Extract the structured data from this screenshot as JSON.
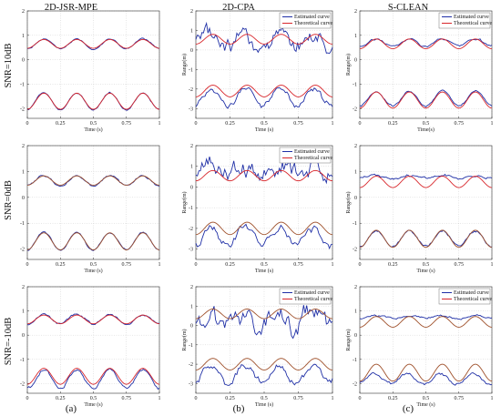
{
  "figure": {
    "column_titles": [
      "2D-JSR-MPE",
      "2D-CPA",
      "S-CLEAN"
    ],
    "row_labels": [
      "SNR=10dB",
      "SNR=0dB",
      "SNR=-10dB"
    ],
    "panel_labels": [
      "(a)",
      "(b)",
      "(c)"
    ],
    "colors": {
      "estimated": "#1f2fa6",
      "theoretical": "#d8262b",
      "theoretical_brown": "#a0522d",
      "grid": "#c0c0c0"
    }
  },
  "chart_data": [
    {
      "type": "line",
      "row": 0,
      "col": 0,
      "xlabel": "Time (s)",
      "ylabel": "",
      "xlim": [
        0,
        1
      ],
      "ylim": [
        -2.4,
        2
      ],
      "xticks": [
        "0",
        "0.25",
        "0.5",
        "0.75",
        "1"
      ],
      "yticks": [
        "-2",
        "-1",
        "0",
        "1",
        "2"
      ],
      "grid": true,
      "legend": null,
      "series": [
        {
          "name": "Estimated curve",
          "role": "est",
          "base": 0.65,
          "amp": 0.2,
          "phase": 0,
          "noise": 0.04
        },
        {
          "name": "Estimated curve",
          "role": "est",
          "base": -1.7,
          "amp": 0.35,
          "phase": 0,
          "noise": 0.04
        },
        {
          "name": "Theoretical curve",
          "role": "theo",
          "base": 0.65,
          "amp": 0.18,
          "phase": 0
        },
        {
          "name": "Theoretical curve",
          "role": "theo",
          "base": -1.7,
          "amp": 0.33,
          "phase": 0
        }
      ]
    },
    {
      "type": "line",
      "row": 0,
      "col": 1,
      "xlabel": "Time (s)",
      "ylabel": "Range(m)",
      "xlim": [
        0,
        1
      ],
      "ylim": [
        -3.5,
        2
      ],
      "xticks": [
        "0",
        "0.25",
        "0.5",
        "0.75",
        "1"
      ],
      "yticks": [
        "-3",
        "-2",
        "-1",
        "0",
        "1",
        "2"
      ],
      "grid": true,
      "legend": {
        "position": "top-right",
        "entries": [
          "Estimated curve",
          "Theoretical curve"
        ]
      },
      "series": [
        {
          "name": "Estimated curve",
          "role": "est",
          "base": 0.5,
          "amp": 0.3,
          "phase": 0.5,
          "noise": 0.55
        },
        {
          "name": "Estimated curve",
          "role": "est",
          "base": -2.4,
          "amp": 0.45,
          "phase": 0.3,
          "noise": 0.2
        },
        {
          "name": "Theoretical curve",
          "role": "theo",
          "base": 0.55,
          "amp": 0.25,
          "phase": 0
        },
        {
          "name": "Theoretical curve",
          "role": "theo",
          "base": -2.1,
          "amp": 0.3,
          "phase": 0
        }
      ]
    },
    {
      "type": "line",
      "row": 0,
      "col": 2,
      "xlabel": "Time(s)",
      "ylabel": "Range(m)",
      "xlim": [
        0,
        1
      ],
      "ylim": [
        -2.4,
        2
      ],
      "xticks": [
        "0",
        "0.25",
        "0.5",
        "0.75",
        "1"
      ],
      "yticks": [
        "-2",
        "-1",
        "0",
        "1",
        "2"
      ],
      "grid": true,
      "legend": {
        "position": "top-right",
        "entries": [
          "Estimated curve",
          "Theoretical curve"
        ]
      },
      "series": [
        {
          "name": "Estimated curve",
          "role": "est",
          "base": 0.7,
          "amp": 0.15,
          "phase": 0,
          "noise": 0.06
        },
        {
          "name": "Estimated curve",
          "role": "est",
          "base": -1.6,
          "amp": 0.3,
          "phase": 0,
          "noise": 0.05
        },
        {
          "name": "Theoretical curve",
          "role": "theo",
          "base": 0.65,
          "amp": 0.2,
          "phase": 0
        },
        {
          "name": "Theoretical curve",
          "role": "theo",
          "base": -1.65,
          "amp": 0.33,
          "phase": 0
        }
      ]
    },
    {
      "type": "line",
      "row": 1,
      "col": 0,
      "xlabel": "Time (s)",
      "ylabel": "",
      "xlim": [
        0,
        1
      ],
      "ylim": [
        -2.4,
        2
      ],
      "xticks": [
        "0",
        "0.25",
        "0.5",
        "0.75",
        "1"
      ],
      "yticks": [
        "-2",
        "-1",
        "0",
        "1",
        "2"
      ],
      "grid": true,
      "legend": null,
      "series": [
        {
          "name": "Estimated curve",
          "role": "est",
          "base": 0.65,
          "amp": 0.2,
          "phase": 0,
          "noise": 0.05
        },
        {
          "name": "Estimated curve",
          "role": "est",
          "base": -1.7,
          "amp": 0.35,
          "phase": 0,
          "noise": 0.05
        },
        {
          "name": "Theoretical curve",
          "role": "theo_brown",
          "base": 0.65,
          "amp": 0.18,
          "phase": 0
        },
        {
          "name": "Theoretical curve",
          "role": "theo_brown",
          "base": -1.7,
          "amp": 0.33,
          "phase": 0
        }
      ]
    },
    {
      "type": "line",
      "row": 1,
      "col": 1,
      "xlabel": "Time (s)",
      "ylabel": "Range(m)",
      "xlim": [
        0,
        1
      ],
      "ylim": [
        -3.5,
        2
      ],
      "xticks": [
        "0",
        "0.25",
        "0.5",
        "0.75",
        "1"
      ],
      "yticks": [
        "-3",
        "-2",
        "-1",
        "0",
        "1",
        "2"
      ],
      "grid": true,
      "legend": {
        "position": "top-right",
        "entries": [
          "Estimated curve",
          "Theoretical curve"
        ]
      },
      "series": [
        {
          "name": "Estimated curve",
          "role": "est",
          "base": 0.9,
          "amp": 0.3,
          "phase": 0.7,
          "noise": 0.65
        },
        {
          "name": "Estimated curve",
          "role": "est",
          "base": -2.4,
          "amp": 0.45,
          "phase": 0.4,
          "noise": 0.25
        },
        {
          "name": "Theoretical curve",
          "role": "theo",
          "base": 0.55,
          "amp": 0.25,
          "phase": 0
        },
        {
          "name": "Theoretical curve",
          "role": "theo_brown",
          "base": -2.0,
          "amp": 0.3,
          "phase": 0
        }
      ]
    },
    {
      "type": "line",
      "row": 1,
      "col": 2,
      "xlabel": "Time (s)",
      "ylabel": "Range(m)",
      "xlim": [
        0,
        1
      ],
      "ylim": [
        -2.4,
        2
      ],
      "xticks": [
        "0",
        "0.25",
        "0.5",
        "0.75",
        "1"
      ],
      "yticks": [
        "-2",
        "-1",
        "0",
        "1",
        "2"
      ],
      "grid": true,
      "legend": null,
      "series": [
        {
          "name": "Estimated curve",
          "role": "est",
          "base": 0.8,
          "amp": 0.06,
          "phase": 0,
          "noise": 0.07
        },
        {
          "name": "Estimated curve",
          "role": "est",
          "base": -1.6,
          "amp": 0.3,
          "phase": 0,
          "noise": 0.06
        },
        {
          "name": "Theoretical curve",
          "role": "theo",
          "base": 0.6,
          "amp": 0.22,
          "phase": 0
        },
        {
          "name": "Theoretical curve",
          "role": "theo_brown",
          "base": -1.6,
          "amp": 0.33,
          "phase": 0
        }
      ]
    },
    {
      "type": "line",
      "row": 2,
      "col": 0,
      "xlabel": "Time (s)",
      "ylabel": "",
      "xlim": [
        0,
        1
      ],
      "ylim": [
        -2.4,
        2
      ],
      "xticks": [
        "0",
        "0.25",
        "0.5",
        "0.75",
        "1"
      ],
      "yticks": [
        "-2",
        "-1",
        "0",
        "1",
        "2"
      ],
      "grid": true,
      "legend": null,
      "series": [
        {
          "name": "Estimated curve",
          "role": "est",
          "base": 0.65,
          "amp": 0.2,
          "phase": 0,
          "noise": 0.06
        },
        {
          "name": "Estimated curve",
          "role": "est",
          "base": -1.8,
          "amp": 0.4,
          "phase": 0,
          "noise": 0.08
        },
        {
          "name": "Theoretical curve",
          "role": "theo",
          "base": 0.65,
          "amp": 0.18,
          "phase": 0
        },
        {
          "name": "Theoretical curve",
          "role": "theo",
          "base": -1.7,
          "amp": 0.33,
          "phase": 0
        }
      ]
    },
    {
      "type": "line",
      "row": 2,
      "col": 1,
      "xlabel": "Time (s)",
      "ylabel": "Range(m)",
      "xlim": [
        0,
        1
      ],
      "ylim": [
        -3.5,
        2
      ],
      "xticks": [
        "0",
        "0.25",
        "0.5",
        "0.75",
        "1"
      ],
      "yticks": [
        "-3",
        "-2",
        "-1",
        "0",
        "1",
        "2"
      ],
      "grid": true,
      "legend": {
        "position": "top-right",
        "entries": [
          "Estimated curve",
          "Theoretical curve"
        ]
      },
      "series": [
        {
          "name": "Estimated curve",
          "role": "est",
          "base": 0.2,
          "amp": 0.35,
          "phase": 0.9,
          "noise": 0.7
        },
        {
          "name": "Estimated curve",
          "role": "est",
          "base": -2.5,
          "amp": 0.45,
          "phase": 0.5,
          "noise": 0.25
        },
        {
          "name": "Theoretical curve",
          "role": "theo_brown",
          "base": 0.6,
          "amp": 0.25,
          "phase": 0
        },
        {
          "name": "Theoretical curve",
          "role": "theo_brown",
          "base": -2.0,
          "amp": 0.3,
          "phase": 0
        }
      ]
    },
    {
      "type": "line",
      "row": 2,
      "col": 2,
      "xlabel": "Time (s)",
      "ylabel": "Range(m)",
      "xlim": [
        0,
        1
      ],
      "ylim": [
        -2.4,
        2
      ],
      "xticks": [
        "0",
        "0.25",
        "0.5",
        "0.75",
        "1"
      ],
      "yticks": [
        "-2",
        "-1",
        "0",
        "1",
        "2"
      ],
      "grid": true,
      "legend": {
        "position": "top-right",
        "entries": [
          "Estimated curve",
          "Theoretical curve"
        ]
      },
      "series": [
        {
          "name": "Estimated curve",
          "role": "est",
          "base": 0.75,
          "amp": 0.04,
          "phase": 0,
          "noise": 0.06
        },
        {
          "name": "Estimated curve",
          "role": "est",
          "base": -1.8,
          "amp": 0.2,
          "phase": 0.4,
          "noise": 0.08
        },
        {
          "name": "Theoretical curve",
          "role": "theo_brown",
          "base": 0.55,
          "amp": 0.22,
          "phase": 0
        },
        {
          "name": "Theoretical curve",
          "role": "theo_brown",
          "base": -1.55,
          "amp": 0.35,
          "phase": 0
        }
      ]
    }
  ]
}
